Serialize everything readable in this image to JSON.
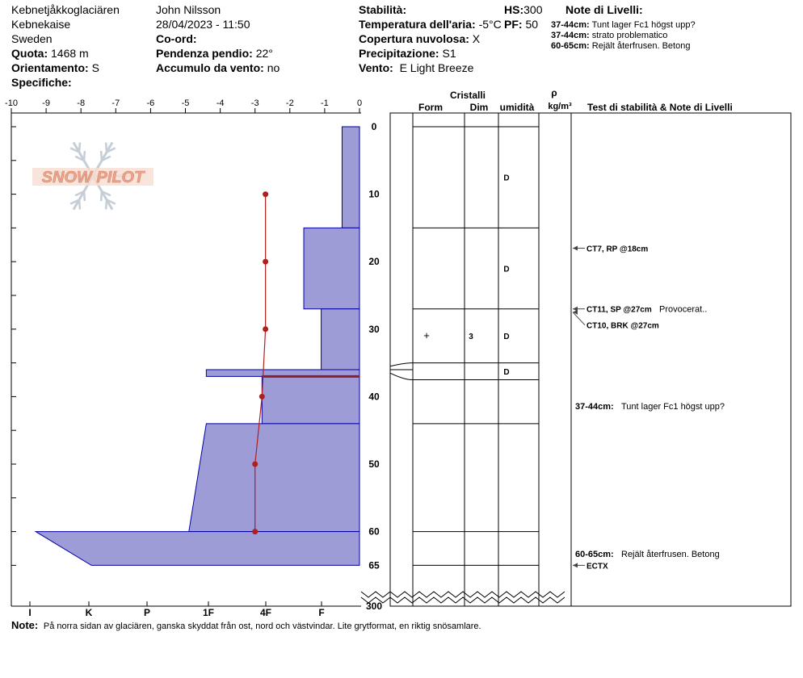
{
  "header": {
    "location": "Kebnetjåkkoglaciären",
    "area": "Kebnekaise",
    "country": "Sweden",
    "elevation_label": "Quota:",
    "elevation_value": "1468 m",
    "aspect_label": "Orientamento:",
    "aspect_value": "S",
    "specifics_label": "Specifiche:",
    "observer": "John Nilsson",
    "datetime": "28/04/2023 - 11:50",
    "coord_label": "Co-ord:",
    "slope_label": "Pendenza pendio:",
    "slope_value": "22°",
    "wind_loading_label": "Accumulo da vento:",
    "wind_loading_value": "no",
    "stability_label": "Stabilità:",
    "air_temp_label": "Temperatura dell'aria:",
    "air_temp_value": "-5°C",
    "sky_label": "Copertura nuvolosa:",
    "sky_value": "X",
    "precip_label": "Precipitazione:",
    "precip_value": "S1",
    "wind_label": "Vento:",
    "wind_value": "E Light Breeze",
    "hs_label": "HS:",
    "hs_value": "300",
    "pf_label": "PF:",
    "pf_value": "50",
    "layer_notes_title": "Note di Livelli:",
    "layer_notes": [
      {
        "range": "37-44cm:",
        "text": "Tunt lager Fc1 högst upp?"
      },
      {
        "range": "37-44cm:",
        "text": "strato problematico"
      },
      {
        "range": "60-65cm:",
        "text": "Rejält återfrusen. Betong"
      }
    ]
  },
  "logo": {
    "text": "SNOW PILOT"
  },
  "colors": {
    "hardness_fill": "#9d9cd6",
    "hardness_stroke": "#0000a0",
    "temp_line": "#b01e1e",
    "logo_text": "#e8a58c",
    "logo_flake": "#c5cdd6"
  },
  "chart_data": {
    "type": "snow_profile",
    "temp_axis": {
      "ticks": [
        "-10",
        "-9",
        "-8",
        "-7",
        "-6",
        "-5",
        "-4",
        "-3",
        "-2",
        "-1",
        "0"
      ],
      "range": [
        -10,
        0
      ]
    },
    "depth_axis": {
      "ticks": [
        "0",
        "10",
        "20",
        "30",
        "40",
        "50",
        "60",
        "65"
      ],
      "range": [
        0,
        65
      ],
      "total_label": "300"
    },
    "hardness_axis": {
      "ticks": [
        "I",
        "K",
        "P",
        "1F",
        "4F",
        "F"
      ]
    },
    "hardness_layers": [
      {
        "top": 0,
        "bottom": 15,
        "temp_extent": -0.5
      },
      {
        "top": 15,
        "bottom": 27,
        "temp_extent": -1.6
      },
      {
        "top": 27,
        "bottom": 36,
        "temp_extent": -1.1
      },
      {
        "top": 36,
        "bottom": 37,
        "temp_extent": -4.4
      },
      {
        "top": 37,
        "bottom": 44,
        "temp_extent": -2.8
      },
      {
        "top": 44,
        "bottom": 60,
        "temp_extent": -4.4,
        "bottom_extent": -4.9
      },
      {
        "top": 60,
        "bottom": 65,
        "temp_extent": -9.3,
        "bottom_extent": -7.7
      }
    ],
    "temperature_profile": [
      {
        "depth": 10,
        "temp": -2.7
      },
      {
        "depth": 20,
        "temp": -2.7
      },
      {
        "depth": 30,
        "temp": -2.7
      },
      {
        "depth": 40,
        "temp": -2.8
      },
      {
        "depth": 50,
        "temp": -3.0
      },
      {
        "depth": 60,
        "temp": -3.0
      }
    ],
    "weak_layer_line": {
      "depth": 37,
      "from": -2.8,
      "to": 0
    }
  },
  "table": {
    "col_form": "Form",
    "col_crystals": "Cristalli",
    "col_size": "Dim",
    "col_moisture": "umidità",
    "col_density_symbol": "ρ",
    "col_density_unit": "kg/m³",
    "col_tests": "Test di stabilità & Note di Livelli",
    "layer_boundaries": [
      0,
      15,
      27,
      35,
      37.5,
      44,
      60,
      65
    ],
    "rows": [
      {
        "depth": 7.5,
        "form": "",
        "size": "",
        "moisture": "D"
      },
      {
        "depth": 21,
        "form": "",
        "size": "",
        "moisture": "D"
      },
      {
        "depth": 31,
        "form": "+",
        "size": "3",
        "moisture": "D"
      },
      {
        "depth": 36.25,
        "form": "",
        "size": "",
        "moisture": "D"
      }
    ],
    "tests": [
      {
        "depth": 18,
        "text": "CT7, RP @18cm",
        "note": ""
      },
      {
        "depth": 27,
        "text": "CT11, SP @27cm",
        "note": "Provocerat.."
      },
      {
        "depth": 27,
        "text": "CT10, BRK @27cm",
        "note": ""
      },
      {
        "depth": 65,
        "text": "ECTX",
        "note": ""
      }
    ],
    "layer_comments": [
      {
        "range": "37-44cm:",
        "text": "Tunt lager Fc1 högst upp?"
      },
      {
        "range": "60-65cm:",
        "text": "Rejält återfrusen. Betong"
      }
    ]
  },
  "footer": {
    "note_label": "Note:",
    "note_text": "På norra sidan av glaciären, ganska skyddat från ost, nord och västvindar. Lite grytformat, en riktig snösamlare."
  }
}
